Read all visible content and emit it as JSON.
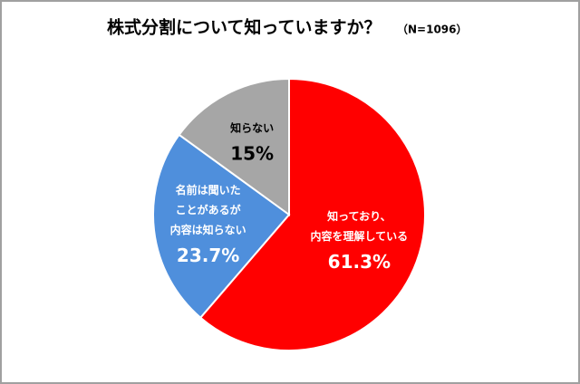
{
  "chart_data": {
    "type": "pie",
    "title": "株式分割について知っていますか？",
    "subtitle": "（N=1096）",
    "categories": [
      [
        "知っており、",
        "内容を理解している"
      ],
      [
        "名前は聞いた",
        "ことがあるが",
        "内容は知らない"
      ],
      [
        "知らない"
      ]
    ],
    "values": [
      61.3,
      23.7,
      15
    ],
    "value_labels": [
      "61.3%",
      "23.7%",
      "15%"
    ],
    "colors": [
      "#ff0000",
      "#4f8fdc",
      "#a6a6a6"
    ],
    "label_colors": [
      "#ffffff",
      "#ffffff",
      "#000000"
    ]
  }
}
